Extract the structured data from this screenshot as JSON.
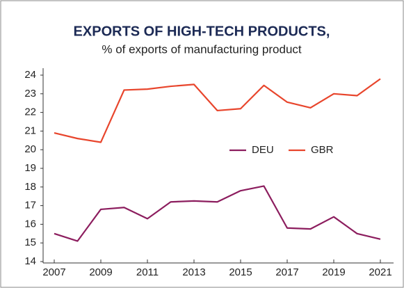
{
  "chart_data": {
    "type": "line",
    "title": "EXPORTS OF HIGH-TECH PRODUCTS,",
    "subtitle": "% of exports of manufacturing product",
    "x": [
      2007,
      2008,
      2009,
      2010,
      2011,
      2012,
      2013,
      2014,
      2015,
      2016,
      2017,
      2018,
      2019,
      2020,
      2021
    ],
    "xlim": [
      2007,
      2021
    ],
    "xticks": [
      2007,
      2009,
      2011,
      2013,
      2015,
      2017,
      2019,
      2021
    ],
    "ylim": [
      14,
      24
    ],
    "yticks": [
      14,
      15,
      16,
      17,
      18,
      19,
      20,
      21,
      22,
      23,
      24
    ],
    "legend": "center",
    "series": [
      {
        "name": "DEU",
        "color": "#8c1d5e",
        "values": [
          15.5,
          15.1,
          16.8,
          16.9,
          16.3,
          17.2,
          17.25,
          17.2,
          17.8,
          18.05,
          15.8,
          15.75,
          16.4,
          15.5,
          15.2
        ]
      },
      {
        "name": "GBR",
        "color": "#e8452c",
        "values": [
          20.9,
          20.6,
          20.4,
          23.2,
          23.25,
          23.4,
          23.5,
          22.1,
          22.2,
          23.45,
          22.55,
          22.25,
          23.0,
          22.9,
          23.8
        ]
      }
    ]
  }
}
